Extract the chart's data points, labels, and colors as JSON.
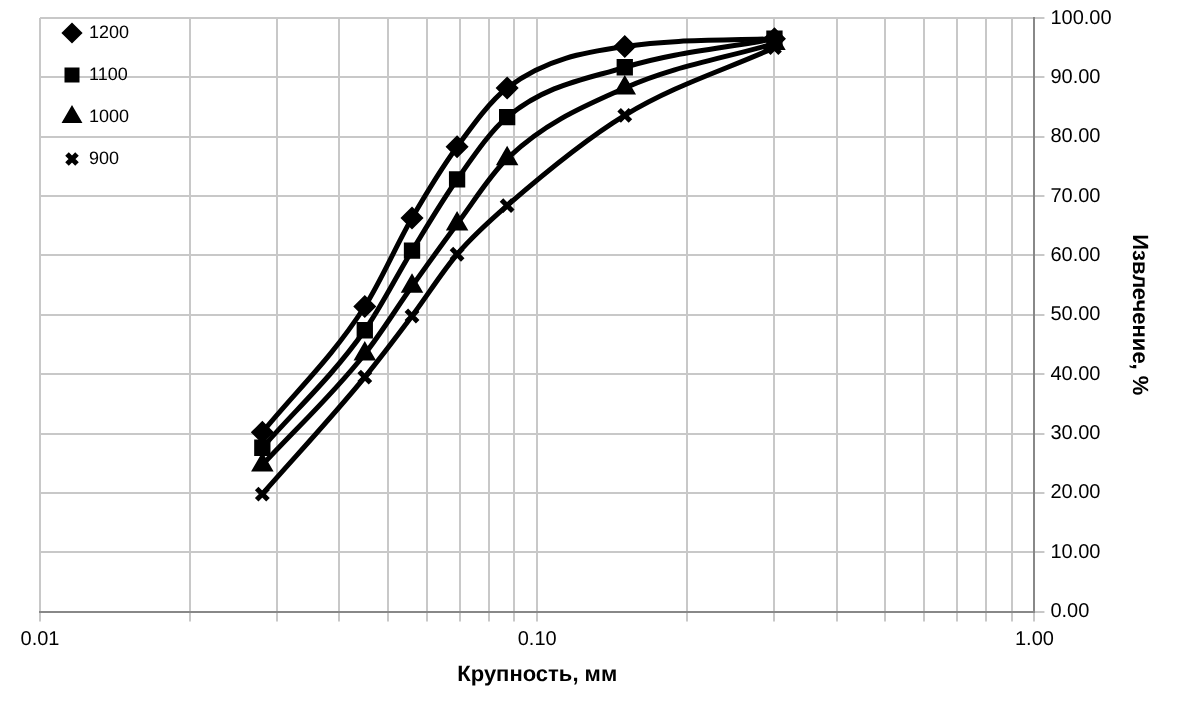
{
  "chart_data": {
    "type": "line",
    "xlabel": "Крупность, мм",
    "ylabel": "Извлечение, %",
    "log": "x",
    "grid": true,
    "legend": "top left",
    "line_style": "solid",
    "xlim": [
      0.01,
      1
    ],
    "xticks": [
      {
        "value": 0.01,
        "label": "0.01"
      },
      {
        "value": 0.02,
        "label": null
      },
      {
        "value": 0.03,
        "label": null
      },
      {
        "value": 0.04,
        "label": null
      },
      {
        "value": 0.05,
        "label": null
      },
      {
        "value": 0.06,
        "label": null
      },
      {
        "value": 0.07,
        "label": null
      },
      {
        "value": 0.08,
        "label": null
      },
      {
        "value": 0.09,
        "label": null
      },
      {
        "value": 0.1,
        "label": "0.10"
      },
      {
        "value": 0.2,
        "label": null
      },
      {
        "value": 0.3,
        "label": null
      },
      {
        "value": 0.4,
        "label": null
      },
      {
        "value": 0.5,
        "label": null
      },
      {
        "value": 0.6,
        "label": null
      },
      {
        "value": 0.7,
        "label": null
      },
      {
        "value": 0.8,
        "label": null
      },
      {
        "value": 0.9,
        "label": null
      },
      {
        "value": 1,
        "label": "1.00"
      }
    ],
    "ylim": [
      0,
      100
    ],
    "yticks": [
      {
        "value": 0,
        "label": "0.00"
      },
      {
        "value": 10,
        "label": "10.00"
      },
      {
        "value": 20,
        "label": "20.00"
      },
      {
        "value": 30,
        "label": "30.00"
      },
      {
        "value": 40,
        "label": "40.00"
      },
      {
        "value": 50,
        "label": "50.00"
      },
      {
        "value": 60,
        "label": "60.00"
      },
      {
        "value": 70,
        "label": "70.00"
      },
      {
        "value": 80,
        "label": "80.00"
      },
      {
        "value": 90,
        "label": "90.00"
      },
      {
        "value": 100,
        "label": "100.00"
      }
    ],
    "x": [
      0.028,
      0.045,
      0.056,
      0.069,
      0.087,
      0.15,
      0.3
    ],
    "series": [
      {
        "name": "1200",
        "color": "#000000",
        "marker": "diamond",
        "values": [
          30.2,
          51.4,
          66.3,
          78.3,
          88.2,
          95.2,
          96.5
        ]
      },
      {
        "name": "1100",
        "color": "#000000",
        "marker": "square",
        "values": [
          27.6,
          47.4,
          60.8,
          72.8,
          83.3,
          91.7,
          96.5
        ]
      },
      {
        "name": "1000",
        "color": "#000000",
        "marker": "triangle",
        "values": [
          24.7,
          43.4,
          54.8,
          65.3,
          76.3,
          88.2,
          95.7
        ]
      },
      {
        "name": "900",
        "color": "#000000",
        "marker": "cross",
        "values": [
          19.8,
          39.5,
          49.8,
          60.2,
          68.4,
          83.6,
          95
        ]
      }
    ]
  }
}
